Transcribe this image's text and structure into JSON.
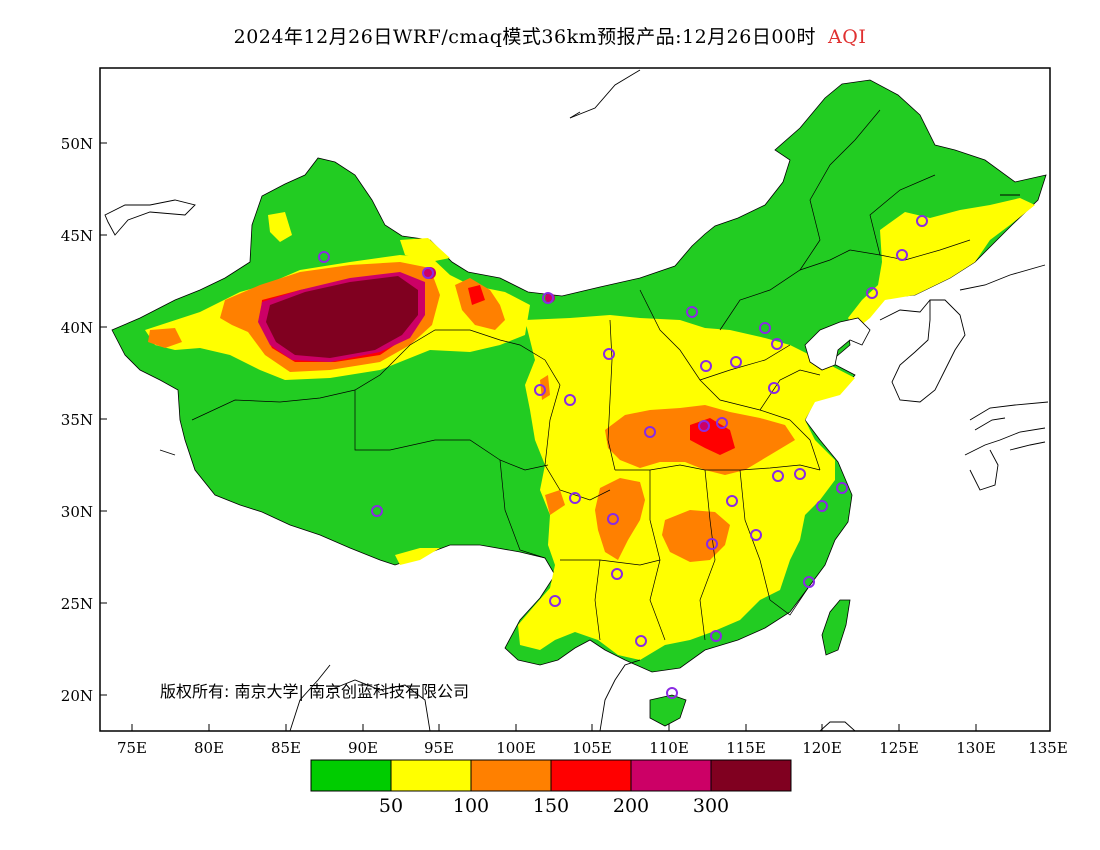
{
  "title": {
    "main": "2024年12月26日WRF/cmaq模式36km预报产品:12月26日00时",
    "variable": "AQI"
  },
  "axes": {
    "x_ticks": [
      "75E",
      "80E",
      "85E",
      "90E",
      "95E",
      "100E",
      "105E",
      "110E",
      "115E",
      "120E",
      "125E",
      "130E",
      "135E"
    ],
    "y_ticks": [
      "50N",
      "45N",
      "40N",
      "35N",
      "30N",
      "25N",
      "20N"
    ]
  },
  "copyright": "版权所有: 南京大学| 南京创蓝科技有限公司",
  "legend": {
    "colors": [
      "#00cc00",
      "#ffff00",
      "#ff8000",
      "#ff0000",
      "#cc0066",
      "#800020"
    ],
    "labels": [
      "50",
      "100",
      "150",
      "200",
      "300"
    ]
  },
  "colors": {
    "land_base": "#22cc22",
    "good": "#00cc00",
    "moderate": "#ffff00",
    "unhealthy_sensitive": "#ff8000",
    "unhealthy": "#ff0000",
    "very_unhealthy": "#cc0066",
    "hazardous": "#800020",
    "station_marker": "#8a2be2"
  }
}
